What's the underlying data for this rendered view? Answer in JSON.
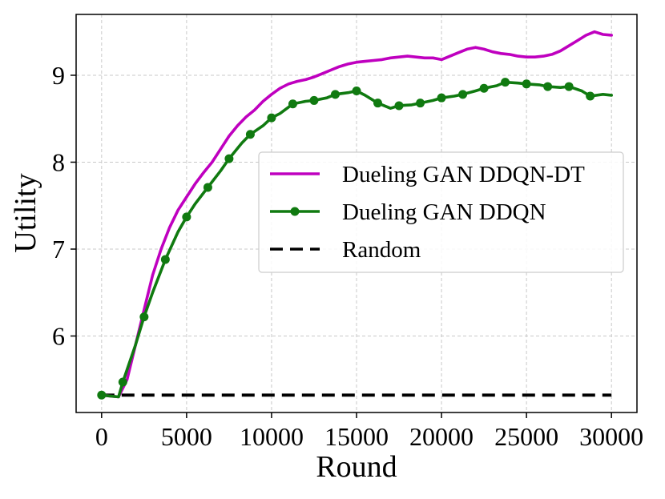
{
  "chart_data": {
    "type": "line",
    "xlabel": "Round",
    "ylabel": "Utility",
    "xlim": [
      -1500,
      31500
    ],
    "ylim": [
      5.12,
      9.7
    ],
    "xticks": [
      0,
      5000,
      10000,
      15000,
      20000,
      25000,
      30000
    ],
    "yticks": [
      6,
      7,
      8,
      9
    ],
    "grid": true,
    "legend_position": "center-right",
    "series": [
      {
        "name": "Dueling GAN DDQN-DT",
        "color": "#bf00bf",
        "marker": "none",
        "line_style": "solid",
        "x": [
          0,
          500,
          1000,
          1500,
          2000,
          2500,
          3000,
          3500,
          4000,
          4500,
          5000,
          5500,
          6000,
          6500,
          7000,
          7500,
          8000,
          8500,
          9000,
          9500,
          10000,
          10500,
          11000,
          11500,
          12000,
          12500,
          13000,
          13500,
          14000,
          14500,
          15000,
          15500,
          16000,
          16500,
          17000,
          17500,
          18000,
          18500,
          19000,
          19500,
          20000,
          20500,
          21000,
          21500,
          22000,
          22500,
          23000,
          23500,
          24000,
          24500,
          25000,
          25500,
          26000,
          26500,
          27000,
          27500,
          28000,
          28500,
          29000,
          29500,
          30000
        ],
        "y": [
          5.32,
          5.31,
          5.3,
          5.5,
          5.9,
          6.3,
          6.7,
          7.0,
          7.25,
          7.45,
          7.6,
          7.75,
          7.88,
          8.0,
          8.15,
          8.3,
          8.42,
          8.52,
          8.6,
          8.7,
          8.78,
          8.85,
          8.9,
          8.93,
          8.95,
          8.98,
          9.02,
          9.06,
          9.1,
          9.13,
          9.15,
          9.16,
          9.17,
          9.18,
          9.2,
          9.21,
          9.22,
          9.21,
          9.2,
          9.2,
          9.18,
          9.22,
          9.26,
          9.3,
          9.32,
          9.3,
          9.27,
          9.25,
          9.24,
          9.22,
          9.21,
          9.21,
          9.22,
          9.24,
          9.28,
          9.34,
          9.4,
          9.46,
          9.5,
          9.47,
          9.46
        ]
      },
      {
        "name": "Dueling GAN DDQN",
        "color": "#107a10",
        "marker": "circle",
        "line_style": "solid",
        "x": [
          0,
          500,
          1000,
          1250,
          2000,
          2500,
          3000,
          3750,
          4500,
          5000,
          5500,
          6250,
          7000,
          7500,
          8250,
          8750,
          9500,
          10000,
          10500,
          11250,
          12000,
          12500,
          13250,
          13750,
          14500,
          15000,
          15500,
          16250,
          17000,
          17500,
          18250,
          18750,
          19500,
          20000,
          20750,
          21250,
          22000,
          22500,
          23250,
          23750,
          24500,
          25000,
          25750,
          26250,
          27000,
          27500,
          28250,
          28750,
          29500,
          30000
        ],
        "y": [
          5.32,
          5.31,
          5.3,
          5.47,
          5.9,
          6.22,
          6.5,
          6.88,
          7.2,
          7.37,
          7.52,
          7.71,
          7.9,
          8.04,
          8.22,
          8.32,
          8.42,
          8.51,
          8.56,
          8.67,
          8.7,
          8.71,
          8.74,
          8.78,
          8.8,
          8.82,
          8.77,
          8.68,
          8.62,
          8.65,
          8.66,
          8.68,
          8.71,
          8.74,
          8.76,
          8.78,
          8.82,
          8.85,
          8.88,
          8.92,
          8.91,
          8.9,
          8.89,
          8.87,
          8.86,
          8.87,
          8.82,
          8.76,
          8.78,
          8.77
        ],
        "marker_x": [
          0,
          1250,
          2500,
          3750,
          5000,
          6250,
          7500,
          8750,
          10000,
          11250,
          12500,
          13750,
          15000,
          16250,
          17500,
          18750,
          20000,
          21250,
          22500,
          23750,
          25000,
          26250,
          27500,
          28750
        ]
      },
      {
        "name": "Random",
        "color": "#000000",
        "marker": "none",
        "line_style": "dashed",
        "x": [
          0,
          30000
        ],
        "y": [
          5.32,
          5.32
        ]
      }
    ]
  }
}
